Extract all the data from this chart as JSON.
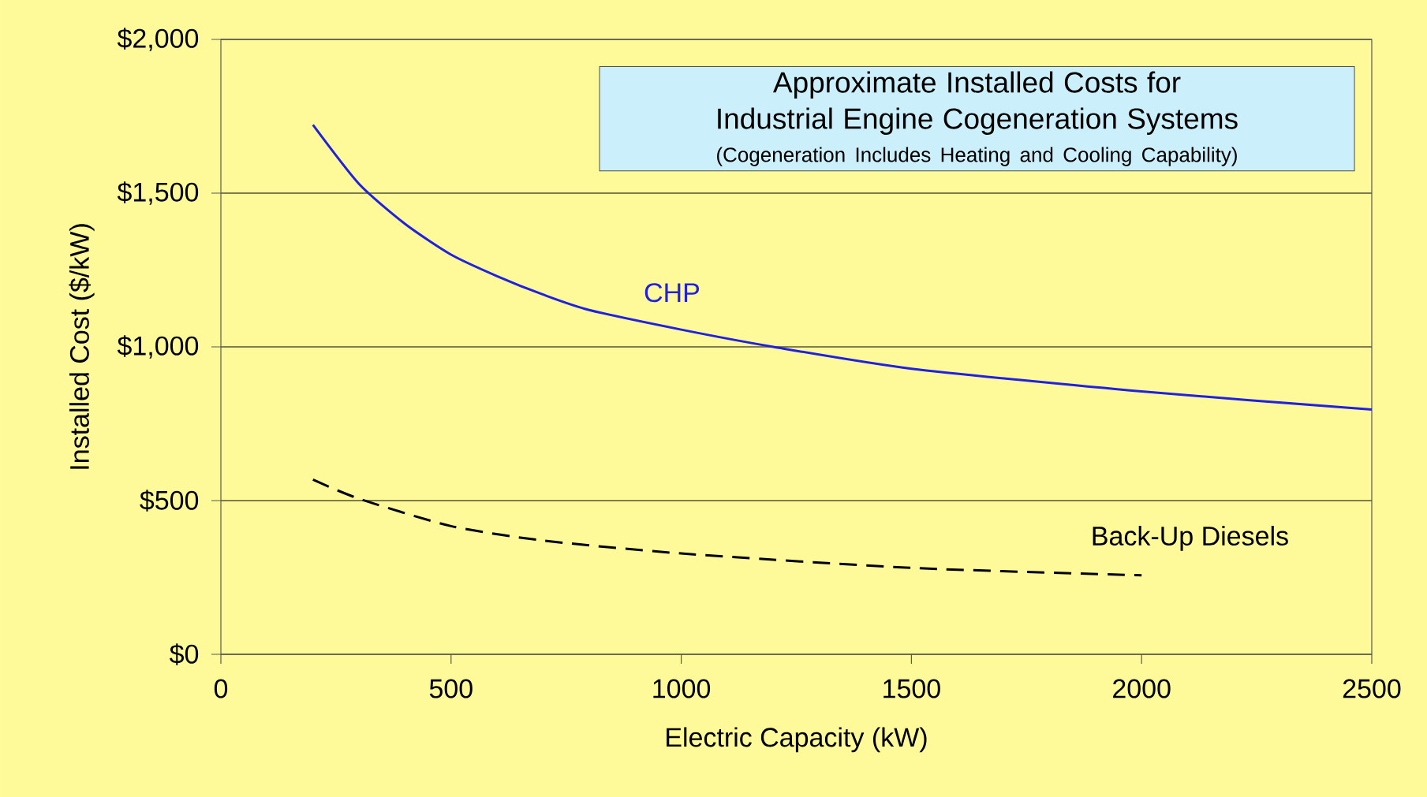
{
  "chart_data": {
    "type": "line",
    "title": "Approximate Installed Costs for Industrial Engine Cogeneration Systems",
    "subtitle": "(Cogeneration Includes Heating and Cooling Capability)",
    "xlabel": "Electric Capacity (kW)",
    "ylabel": "Installed Cost ($/kW)",
    "series": [
      {
        "name": "CHP",
        "color": "#2020e0",
        "line_style": "solid",
        "x": [
          200,
          300,
          400,
          500,
          600,
          700,
          800,
          1000,
          1200,
          1500,
          2000,
          2500
        ],
        "values": [
          1722,
          1530,
          1400,
          1300,
          1230,
          1170,
          1120,
          1056,
          1000,
          929,
          855,
          796
        ]
      },
      {
        "name": "Back-Up Diesels",
        "color": "#000000",
        "line_style": "dashed",
        "x": [
          200,
          300,
          500,
          700,
          1000,
          1500,
          2000
        ],
        "values": [
          568,
          506,
          417,
          370,
          328,
          281,
          257
        ]
      }
    ],
    "xlim": [
      0,
      2500
    ],
    "xticks": [
      0,
      500,
      1000,
      1500,
      2000,
      2500
    ],
    "ylim": [
      0,
      2000
    ],
    "yticks": [
      {
        "value": 0,
        "label": "$0"
      },
      {
        "value": 500,
        "label": "$500"
      },
      {
        "value": 1000,
        "label": "$1,000"
      },
      {
        "value": 1500,
        "label": "$1,500"
      },
      {
        "value": 2000,
        "label": "$2,000"
      }
    ],
    "grid": "y"
  }
}
